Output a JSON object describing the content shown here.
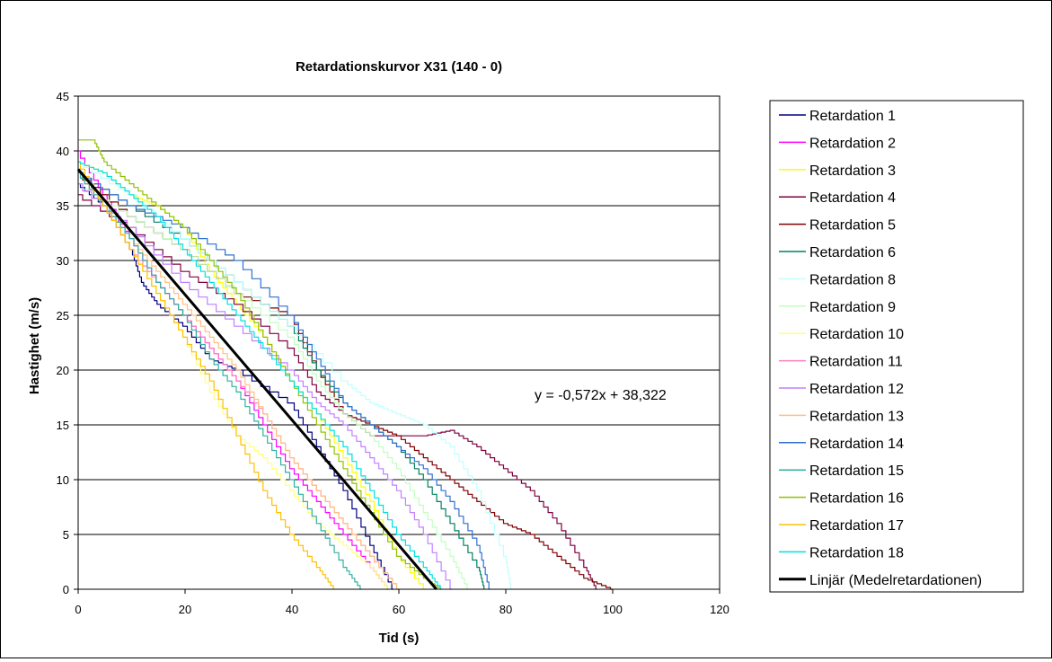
{
  "chart_data": {
    "type": "line",
    "title": "Retardationskurvor X31 (140 - 0)",
    "xlabel": "Tid (s)",
    "ylabel": "Hastighet (m/s)",
    "xlim": [
      0,
      120
    ],
    "ylim": [
      0,
      45
    ],
    "xticks": [
      "0",
      "20",
      "40",
      "60",
      "80",
      "100",
      "120"
    ],
    "yticks": [
      "0",
      "5",
      "10",
      "15",
      "20",
      "25",
      "30",
      "35",
      "40",
      "45"
    ],
    "grid": "horizontal",
    "legend_position": "right",
    "annotation": "y = -0,572x + 38,322",
    "series": [
      {
        "name": "Retardation 1",
        "color": "#000080",
        "x": [
          0,
          5,
          10,
          12,
          15,
          20,
          25,
          30,
          40,
          45,
          50,
          55,
          59
        ],
        "y": [
          37,
          35,
          31,
          28,
          26,
          24,
          21,
          20,
          17,
          13,
          9,
          4,
          0
        ]
      },
      {
        "name": "Retardation 2",
        "color": "#ff00ff",
        "x": [
          0,
          5,
          10,
          15,
          20,
          25,
          30,
          35,
          40,
          45,
          50,
          55,
          58
        ],
        "y": [
          40,
          36,
          32,
          28,
          25,
          22,
          19,
          15,
          11,
          8,
          5,
          2,
          0
        ]
      },
      {
        "name": "Retardation 3",
        "color": "#ffff00",
        "x": [
          0,
          5,
          10,
          15,
          20,
          25,
          30,
          35,
          40,
          45,
          50,
          55,
          60,
          65
        ],
        "y": [
          39,
          38,
          36,
          35,
          33,
          29,
          26,
          23,
          19,
          16,
          12,
          8,
          3,
          0
        ]
      },
      {
        "name": "Retardation 4",
        "color": "#800040",
        "x": [
          0,
          10,
          20,
          30,
          40,
          45,
          50,
          55,
          60,
          65,
          70,
          75,
          80,
          85,
          90,
          95,
          97
        ],
        "y": [
          36,
          33,
          29,
          26,
          22,
          18,
          16,
          14,
          14,
          14,
          14.5,
          13,
          11,
          9,
          6,
          2,
          0
        ]
      },
      {
        "name": "Retardation 5",
        "color": "#800000",
        "x": [
          0,
          10,
          20,
          30,
          40,
          45,
          50,
          55,
          60,
          65,
          70,
          75,
          80,
          85,
          90,
          95,
          100
        ],
        "y": [
          38,
          34,
          31,
          27,
          25,
          20,
          16,
          15,
          14,
          12,
          10,
          8,
          6,
          5,
          3,
          1,
          0
        ]
      },
      {
        "name": "Retardation 6",
        "color": "#008060",
        "x": [
          0,
          10,
          20,
          30,
          40,
          45,
          50,
          55,
          60,
          65,
          70,
          75,
          76
        ],
        "y": [
          38,
          35,
          32,
          28,
          24,
          20,
          17,
          15,
          13,
          10,
          6,
          2,
          0
        ]
      },
      {
        "name": "Retardation 8",
        "color": "#c0ffff",
        "x": [
          0,
          10,
          20,
          30,
          40,
          50,
          55,
          60,
          65,
          70,
          75,
          80,
          81
        ],
        "y": [
          39,
          36,
          32,
          28,
          24,
          19,
          17,
          16,
          15,
          13,
          9,
          3,
          0
        ]
      },
      {
        "name": "Retardation 9",
        "color": "#c0ffc0",
        "x": [
          0,
          10,
          20,
          30,
          40,
          45,
          50,
          55,
          60,
          65,
          70,
          73
        ],
        "y": [
          37,
          34,
          31,
          27,
          23,
          19,
          16,
          14,
          11,
          7,
          3,
          0
        ]
      },
      {
        "name": "Retardation 10",
        "color": "#ffff80",
        "x": [
          0,
          5,
          10,
          15,
          20,
          25,
          30,
          35,
          40,
          45,
          50,
          55,
          58
        ],
        "y": [
          38,
          35,
          31,
          27,
          23,
          18,
          14,
          12,
          9,
          6,
          4,
          2,
          0
        ]
      },
      {
        "name": "Retardation 11",
        "color": "#ff80c0",
        "x": [
          0,
          5,
          10,
          15,
          20,
          25,
          30,
          35,
          40,
          45,
          50,
          55,
          60
        ],
        "y": [
          38,
          35,
          31,
          28,
          25,
          22,
          19,
          16,
          12,
          9,
          6,
          3,
          0
        ]
      },
      {
        "name": "Retardation 12",
        "color": "#c080ff",
        "x": [
          0,
          10,
          20,
          30,
          40,
          45,
          50,
          55,
          60,
          65,
          70
        ],
        "y": [
          37,
          33,
          28,
          24,
          20,
          17,
          15,
          12,
          9,
          5,
          0
        ]
      },
      {
        "name": "Retardation 13",
        "color": "#ffc080",
        "x": [
          0,
          5,
          10,
          15,
          20,
          25,
          30,
          35,
          40,
          45,
          50,
          55,
          60
        ],
        "y": [
          38,
          35,
          32,
          29,
          26,
          23,
          20,
          16,
          12,
          9,
          6,
          3,
          0
        ]
      },
      {
        "name": "Retardation 14",
        "color": "#3070d0",
        "x": [
          0,
          10,
          20,
          30,
          40,
          45,
          50,
          55,
          60,
          65,
          70,
          75,
          77
        ],
        "y": [
          38,
          35,
          33,
          30,
          25,
          21,
          17,
          15,
          13,
          11,
          8,
          4,
          0
        ]
      },
      {
        "name": "Retardation 15",
        "color": "#30b0a0",
        "x": [
          0,
          5,
          10,
          15,
          20,
          25,
          30,
          35,
          40,
          45,
          50,
          53
        ],
        "y": [
          38,
          35,
          32,
          28,
          25,
          21,
          18,
          14,
          10,
          6,
          2,
          0
        ]
      },
      {
        "name": "Retardation 16",
        "color": "#90c000",
        "x": [
          0,
          3,
          5,
          10,
          15,
          20,
          25,
          30,
          35,
          40,
          45,
          50,
          55,
          60,
          65,
          68
        ],
        "y": [
          41,
          41,
          39,
          37,
          35,
          33,
          30,
          27,
          23,
          19,
          15,
          11,
          7,
          3,
          1,
          0
        ]
      },
      {
        "name": "Retardation 17",
        "color": "#ffc000",
        "x": [
          0,
          5,
          10,
          15,
          20,
          25,
          30,
          35,
          40,
          45,
          48
        ],
        "y": [
          39,
          35,
          31,
          27,
          23,
          19,
          14,
          9,
          5,
          2,
          0
        ]
      },
      {
        "name": "Retardation 18",
        "color": "#00e0e0",
        "x": [
          0,
          5,
          10,
          15,
          20,
          25,
          30,
          35,
          40,
          45,
          50,
          55,
          60,
          65,
          68
        ],
        "y": [
          39,
          38,
          36,
          34,
          31,
          28,
          25,
          22,
          19,
          16,
          13,
          9,
          5,
          2,
          0
        ]
      },
      {
        "name": "Linjär (Medelretardationen)",
        "color": "#000000",
        "width": 3,
        "x": [
          0,
          67
        ],
        "y": [
          38.322,
          0
        ]
      }
    ]
  }
}
